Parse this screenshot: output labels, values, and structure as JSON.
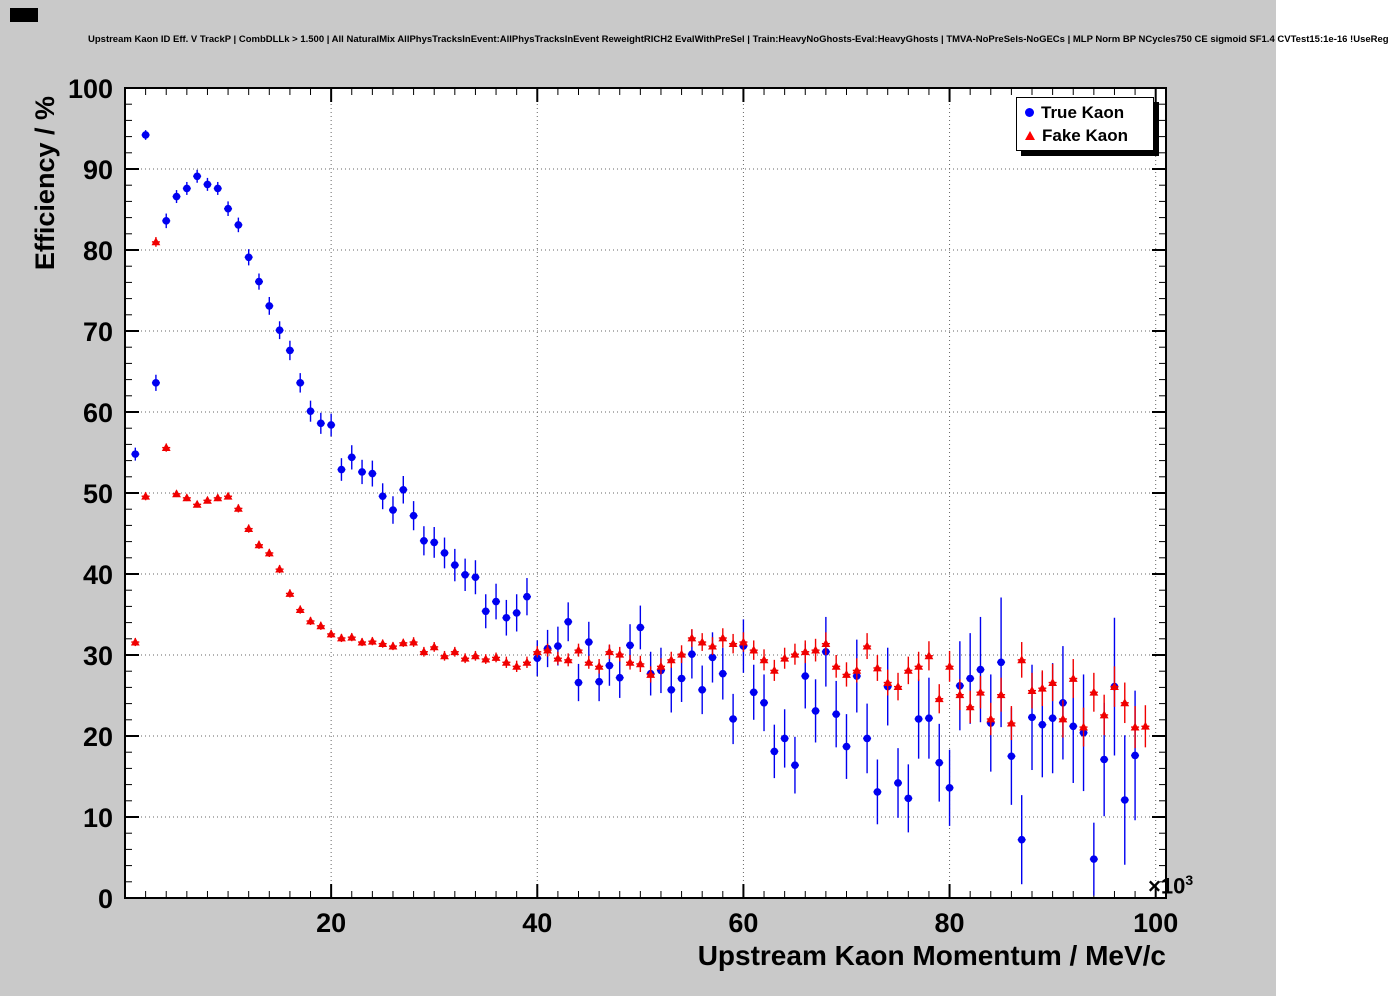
{
  "chart_data": {
    "type": "scatter",
    "title": "Upstream Kaon ID Eff. V TrackP | CombDLLk > 1.500 | All NaturalMix AllPhysTracksInEvent:AllPhysTracksInEvent ReweightRICH2 EvalWithPreSel | Train:HeavyNoGhosts-Eval:HeavyGhosts | TMVA-NoPreSels-NoGECs | MLP Norm BP NCycles750 CE sigmoid SF1.4 CVTest15:1e-16 !UseReg",
    "xlabel": "Upstream Kaon Momentum / MeV/c",
    "ylabel": "Efficiency / %",
    "x_scale_base": "×10",
    "x_scale_exp": "3",
    "xlim": [
      0,
      101
    ],
    "ylim": [
      0,
      100
    ],
    "xticks": [
      20,
      40,
      60,
      80,
      100
    ],
    "yticks": [
      0,
      10,
      20,
      30,
      40,
      50,
      60,
      70,
      80,
      90,
      100
    ],
    "grid": true,
    "legend": {
      "position": "top-right",
      "entries": [
        {
          "label": "True Kaon",
          "marker": "circle",
          "color": "#0000ff"
        },
        {
          "label": "Fake Kaon",
          "marker": "triangle",
          "color": "#ff0000"
        }
      ]
    },
    "series": [
      {
        "name": "True Kaon",
        "color": "#0000f0",
        "marker": "circle",
        "points": [
          [
            1,
            54.8,
            0.8
          ],
          [
            2,
            94.2,
            0.6
          ],
          [
            3,
            63.6,
            1.0
          ],
          [
            4,
            83.6,
            0.9
          ],
          [
            5,
            86.6,
            0.8
          ],
          [
            6,
            87.6,
            0.8
          ],
          [
            7,
            89.1,
            0.8
          ],
          [
            8,
            88.1,
            0.8
          ],
          [
            9,
            87.6,
            0.8
          ],
          [
            10,
            85.1,
            0.9
          ],
          [
            11,
            83.1,
            0.9
          ],
          [
            12,
            79.1,
            1.0
          ],
          [
            13,
            76.1,
            1.0
          ],
          [
            14,
            73.1,
            1.1
          ],
          [
            15,
            70.1,
            1.1
          ],
          [
            16,
            67.6,
            1.2
          ],
          [
            17,
            63.6,
            1.2
          ],
          [
            18,
            60.1,
            1.3
          ],
          [
            19,
            58.6,
            1.3
          ],
          [
            20,
            58.4,
            1.4
          ],
          [
            21,
            52.9,
            1.4
          ],
          [
            22,
            54.4,
            1.5
          ],
          [
            23,
            52.6,
            1.5
          ],
          [
            24,
            52.4,
            1.6
          ],
          [
            25,
            49.6,
            1.6
          ],
          [
            26,
            47.9,
            1.7
          ],
          [
            27,
            50.4,
            1.7
          ],
          [
            28,
            47.2,
            1.8
          ],
          [
            29,
            44.1,
            1.8
          ],
          [
            30,
            43.9,
            1.9
          ],
          [
            31,
            42.6,
            1.9
          ],
          [
            32,
            41.1,
            2.0
          ],
          [
            33,
            39.9,
            2.0
          ],
          [
            34,
            39.6,
            2.1
          ],
          [
            35,
            35.4,
            2.1
          ],
          [
            36,
            36.6,
            2.2
          ],
          [
            37,
            34.6,
            2.2
          ],
          [
            38,
            35.2,
            2.3
          ],
          [
            39,
            37.2,
            2.3
          ],
          [
            40,
            29.6,
            2.2
          ],
          [
            41,
            30.8,
            2.3
          ],
          [
            42,
            31.1,
            2.4
          ],
          [
            43,
            34.1,
            2.4
          ],
          [
            44,
            26.6,
            2.3
          ],
          [
            45,
            31.6,
            2.5
          ],
          [
            46,
            26.7,
            2.4
          ],
          [
            47,
            28.7,
            2.5
          ],
          [
            48,
            27.2,
            2.5
          ],
          [
            49,
            31.2,
            2.6
          ],
          [
            50,
            33.4,
            2.7
          ],
          [
            51,
            27.7,
            2.7
          ],
          [
            52,
            28.1,
            2.8
          ],
          [
            53,
            25.7,
            2.8
          ],
          [
            54,
            27.1,
            2.9
          ],
          [
            55,
            30.1,
            3.0
          ],
          [
            56,
            25.7,
            3.0
          ],
          [
            57,
            29.7,
            3.1
          ],
          [
            58,
            27.7,
            3.2
          ],
          [
            59,
            22.1,
            3.1
          ],
          [
            60,
            31.1,
            3.3
          ],
          [
            61,
            25.4,
            3.4
          ],
          [
            62,
            24.1,
            3.5
          ],
          [
            63,
            18.1,
            3.3
          ],
          [
            64,
            19.7,
            3.6
          ],
          [
            65,
            16.4,
            3.5
          ],
          [
            66,
            27.4,
            4.0
          ],
          [
            67,
            23.1,
            3.9
          ],
          [
            68,
            30.4,
            4.3
          ],
          [
            69,
            22.7,
            4.1
          ],
          [
            70,
            18.7,
            4.0
          ],
          [
            71,
            27.4,
            4.5
          ],
          [
            72,
            19.7,
            4.3
          ],
          [
            73,
            13.1,
            4.0
          ],
          [
            74,
            26.1,
            4.8
          ],
          [
            75,
            14.2,
            4.3
          ],
          [
            76,
            12.3,
            4.2
          ],
          [
            77,
            22.1,
            4.9
          ],
          [
            78,
            22.2,
            5.0
          ],
          [
            79,
            16.7,
            4.8
          ],
          [
            80,
            13.6,
            4.7
          ],
          [
            81,
            26.2,
            5.5
          ],
          [
            82,
            27.1,
            5.6
          ],
          [
            83,
            28.2,
            6.5
          ],
          [
            84,
            21.6,
            6.0
          ],
          [
            85,
            29.1,
            8.0
          ],
          [
            86,
            17.5,
            6.0
          ],
          [
            87,
            7.2,
            5.5
          ],
          [
            88,
            22.3,
            6.5
          ],
          [
            89,
            21.4,
            6.5
          ],
          [
            90,
            22.2,
            6.8
          ],
          [
            91,
            24.1,
            7.0
          ],
          [
            92,
            21.2,
            7.0
          ],
          [
            93,
            20.4,
            7.2
          ],
          [
            94,
            4.8,
            4.5
          ],
          [
            95,
            17.1,
            7.0
          ],
          [
            96,
            26.1,
            8.5
          ],
          [
            97,
            12.1,
            8.0
          ],
          [
            98,
            17.6,
            8.0
          ]
        ]
      },
      {
        "name": "Fake Kaon",
        "color": "#f00000",
        "marker": "triangle",
        "points": [
          [
            1,
            31.6,
            0.5
          ],
          [
            2,
            49.6,
            0.5
          ],
          [
            3,
            81.0,
            0.6
          ],
          [
            4,
            55.6,
            0.5
          ],
          [
            5,
            49.9,
            0.4
          ],
          [
            6,
            49.4,
            0.4
          ],
          [
            7,
            48.6,
            0.4
          ],
          [
            8,
            49.1,
            0.4
          ],
          [
            9,
            49.4,
            0.4
          ],
          [
            10,
            49.6,
            0.4
          ],
          [
            11,
            48.1,
            0.5
          ],
          [
            12,
            45.6,
            0.5
          ],
          [
            13,
            43.6,
            0.5
          ],
          [
            14,
            42.6,
            0.5
          ],
          [
            15,
            40.6,
            0.5
          ],
          [
            16,
            37.6,
            0.5
          ],
          [
            17,
            35.6,
            0.5
          ],
          [
            18,
            34.2,
            0.5
          ],
          [
            19,
            33.6,
            0.5
          ],
          [
            20,
            32.6,
            0.5
          ],
          [
            21,
            32.1,
            0.5
          ],
          [
            22,
            32.2,
            0.5
          ],
          [
            23,
            31.6,
            0.5
          ],
          [
            24,
            31.7,
            0.5
          ],
          [
            25,
            31.4,
            0.5
          ],
          [
            26,
            31.1,
            0.5
          ],
          [
            27,
            31.5,
            0.5
          ],
          [
            28,
            31.6,
            0.6
          ],
          [
            29,
            30.4,
            0.6
          ],
          [
            30,
            31.0,
            0.6
          ],
          [
            31,
            29.9,
            0.6
          ],
          [
            32,
            30.4,
            0.6
          ],
          [
            33,
            29.6,
            0.6
          ],
          [
            34,
            29.9,
            0.6
          ],
          [
            35,
            29.5,
            0.6
          ],
          [
            36,
            29.7,
            0.6
          ],
          [
            37,
            29.1,
            0.7
          ],
          [
            38,
            28.6,
            0.7
          ],
          [
            39,
            29.1,
            0.7
          ],
          [
            40,
            30.4,
            0.7
          ],
          [
            41,
            30.6,
            0.8
          ],
          [
            42,
            29.6,
            0.8
          ],
          [
            43,
            29.4,
            0.8
          ],
          [
            44,
            30.6,
            0.8
          ],
          [
            45,
            29.1,
            0.8
          ],
          [
            46,
            28.6,
            0.9
          ],
          [
            47,
            30.4,
            0.9
          ],
          [
            48,
            30.1,
            0.9
          ],
          [
            49,
            29.1,
            0.9
          ],
          [
            50,
            28.9,
            1.0
          ],
          [
            51,
            27.6,
            1.0
          ],
          [
            52,
            28.6,
            1.0
          ],
          [
            53,
            29.4,
            1.0
          ],
          [
            54,
            30.1,
            1.1
          ],
          [
            55,
            32.1,
            1.1
          ],
          [
            56,
            31.6,
            1.1
          ],
          [
            57,
            31.1,
            1.1
          ],
          [
            58,
            32.1,
            1.2
          ],
          [
            59,
            31.4,
            1.2
          ],
          [
            60,
            31.6,
            1.2
          ],
          [
            61,
            30.6,
            1.2
          ],
          [
            62,
            29.4,
            1.3
          ],
          [
            63,
            28.1,
            1.3
          ],
          [
            64,
            29.6,
            1.3
          ],
          [
            65,
            30.1,
            1.3
          ],
          [
            66,
            30.4,
            1.4
          ],
          [
            67,
            30.6,
            1.4
          ],
          [
            68,
            31.4,
            1.4
          ],
          [
            69,
            28.6,
            1.4
          ],
          [
            70,
            27.6,
            1.5
          ],
          [
            71,
            28.1,
            1.5
          ],
          [
            72,
            31.1,
            1.6
          ],
          [
            73,
            28.4,
            1.6
          ],
          [
            74,
            26.6,
            1.6
          ],
          [
            75,
            26.1,
            1.7
          ],
          [
            76,
            28.1,
            1.7
          ],
          [
            77,
            28.6,
            1.8
          ],
          [
            78,
            29.9,
            1.8
          ],
          [
            79,
            24.6,
            1.8
          ],
          [
            80,
            28.6,
            1.9
          ],
          [
            81,
            25.1,
            1.9
          ],
          [
            82,
            23.6,
            2.0
          ],
          [
            83,
            25.4,
            2.0
          ],
          [
            84,
            22.1,
            2.0
          ],
          [
            85,
            25.1,
            2.1
          ],
          [
            86,
            21.6,
            2.1
          ],
          [
            87,
            29.4,
            2.2
          ],
          [
            88,
            25.6,
            2.2
          ],
          [
            89,
            25.9,
            2.2
          ],
          [
            90,
            26.6,
            2.3
          ],
          [
            91,
            22.1,
            2.3
          ],
          [
            92,
            27.1,
            2.4
          ],
          [
            93,
            21.1,
            2.4
          ],
          [
            94,
            25.4,
            2.4
          ],
          [
            95,
            22.6,
            2.5
          ],
          [
            96,
            26.1,
            2.5
          ],
          [
            97,
            24.1,
            2.5
          ],
          [
            98,
            21.1,
            2.6
          ],
          [
            99,
            21.2,
            2.6
          ]
        ]
      }
    ]
  }
}
